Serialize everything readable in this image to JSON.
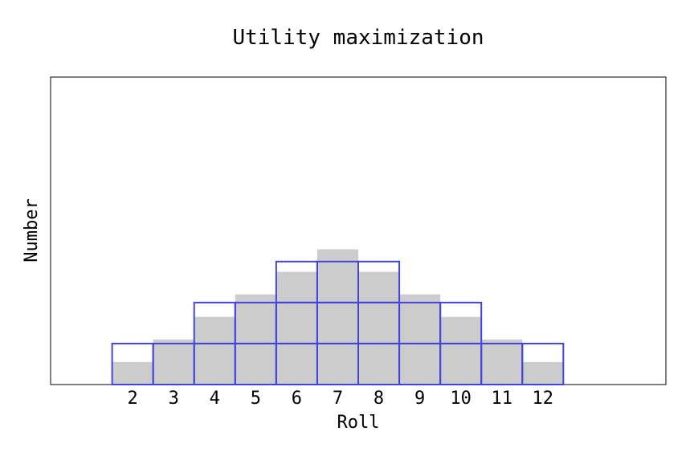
{
  "chart_data": {
    "type": "bar",
    "title": "Utility maximization",
    "xlabel": "Roll",
    "ylabel": "Number",
    "categories": [
      "2",
      "3",
      "4",
      "5",
      "6",
      "7",
      "8",
      "9",
      "10",
      "11",
      "12"
    ],
    "xlim": [
      0,
      15
    ],
    "ylim": [
      0,
      7.5
    ],
    "grid": false,
    "legend": "none",
    "y_ticks_shown": false,
    "series": [
      {
        "style": "filled-histogram",
        "color": "#cccccc",
        "values": [
          0.55,
          1.1,
          1.65,
          2.2,
          2.75,
          3.3,
          2.75,
          2.2,
          1.65,
          1.1,
          0.55
        ]
      },
      {
        "style": "stacked-unit-outline",
        "color": "#4444dd",
        "values": [
          1,
          1,
          2,
          2,
          3,
          3,
          3,
          2,
          2,
          1,
          1
        ]
      }
    ]
  }
}
